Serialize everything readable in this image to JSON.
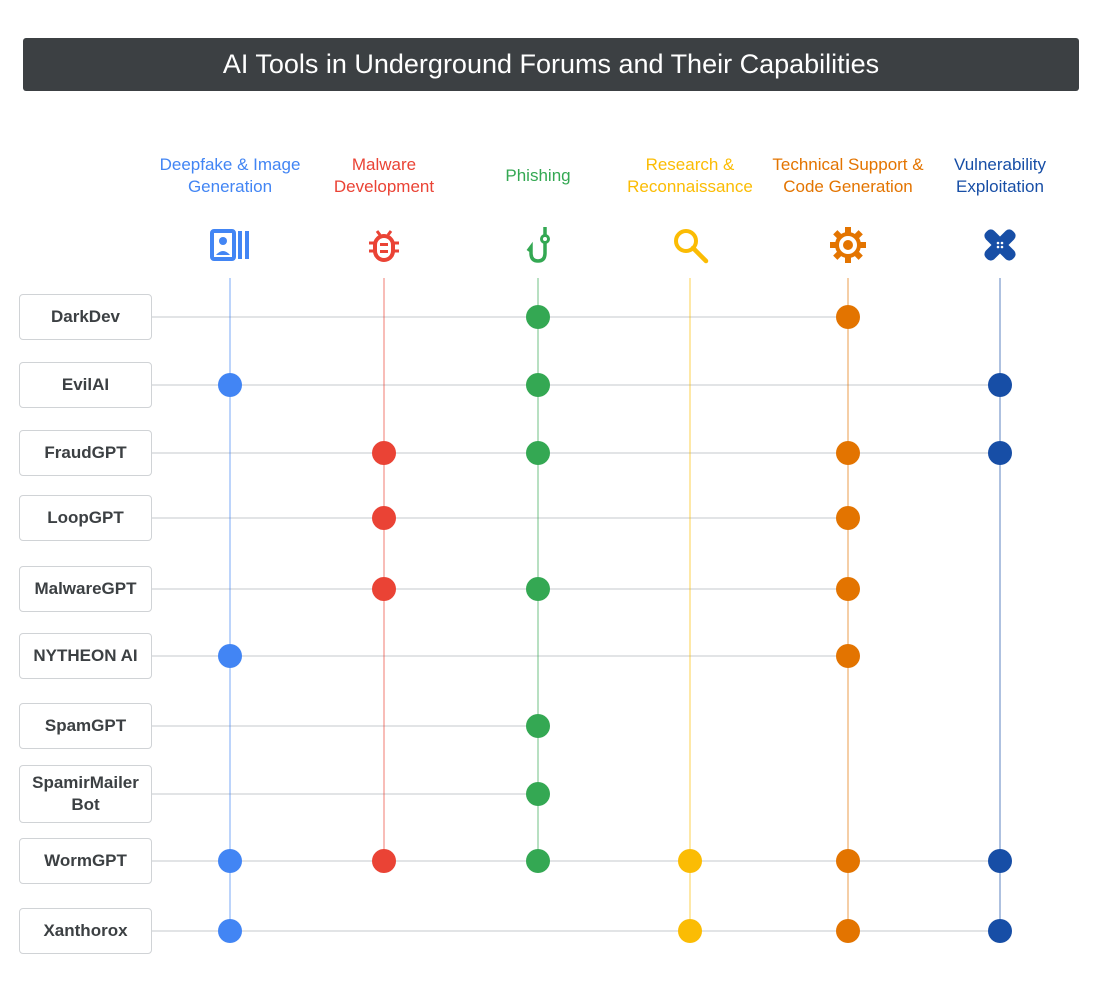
{
  "title": "AI Tools in Underground Forums and Their Capabilities",
  "chart_data": {
    "type": "dot-matrix",
    "columns": [
      {
        "label": "Deepfake & Image Generation",
        "color": "#4285f4",
        "icon": "image-generation-icon"
      },
      {
        "label": "Malware Development",
        "color": "#ea4335",
        "icon": "bug-icon"
      },
      {
        "label": "Phishing",
        "color": "#34a853",
        "icon": "fishing-hook-icon"
      },
      {
        "label": "Research & Reconnaissance",
        "color": "#fbbc04",
        "icon": "search-icon"
      },
      {
        "label": "Technical Support & Code Generation",
        "color": "#e37400",
        "icon": "gear-icon"
      },
      {
        "label": "Vulnerability Exploitation",
        "color": "#174ea6",
        "icon": "bandage-icon"
      }
    ],
    "rows": [
      {
        "label": "DarkDev",
        "capabilities": [
          2,
          4
        ]
      },
      {
        "label": "EvilAI",
        "capabilities": [
          0,
          2,
          5
        ]
      },
      {
        "label": "FraudGPT",
        "capabilities": [
          1,
          2,
          4,
          5
        ]
      },
      {
        "label": "LoopGPT",
        "capabilities": [
          1,
          4
        ]
      },
      {
        "label": "MalwareGPT",
        "capabilities": [
          1,
          2,
          4
        ]
      },
      {
        "label": "NYTHEON AI",
        "capabilities": [
          0,
          4
        ]
      },
      {
        "label": "SpamGPT",
        "capabilities": [
          2
        ]
      },
      {
        "label": "SpamirMailer Bot",
        "capabilities": [
          2
        ]
      },
      {
        "label": "WormGPT",
        "capabilities": [
          0,
          1,
          2,
          3,
          4,
          5
        ]
      },
      {
        "label": "Xanthorox",
        "capabilities": [
          0,
          3,
          4,
          5
        ]
      }
    ]
  }
}
